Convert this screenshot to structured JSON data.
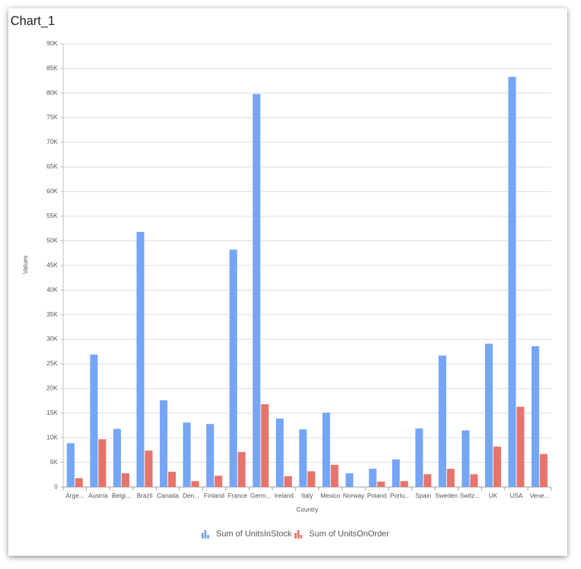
{
  "chart_data": {
    "type": "bar",
    "title": "Chart_1",
    "x_label": "Country",
    "y_label": "Values",
    "categories": [
      "Arge...",
      "Austria",
      "Belgi...",
      "Brazil",
      "Canada",
      "Den...",
      "Finland",
      "France",
      "Germ...",
      "Ireland",
      "Italy",
      "Mexico",
      "Norway",
      "Poland",
      "Portu...",
      "Spain",
      "Sweden",
      "Switz...",
      "UK",
      "USA",
      "Vene..."
    ],
    "series": [
      {
        "name": "Sum of UnitsInStock",
        "color": "#75a5f5",
        "values": [
          8900,
          26900,
          11800,
          51800,
          17600,
          13100,
          12800,
          48200,
          79800,
          13900,
          11700,
          15100,
          2800,
          3700,
          5600,
          11900,
          26700,
          11500,
          29100,
          83300,
          28600
        ]
      },
      {
        "name": "Sum of UnitsOnOrder",
        "color": "#e6746a",
        "values": [
          1800,
          9700,
          2800,
          7400,
          3100,
          1200,
          2300,
          7100,
          16800,
          2200,
          3200,
          4500,
          0,
          1100,
          1200,
          2600,
          3700,
          2600,
          8200,
          16300,
          6700
        ]
      }
    ],
    "ylim": [
      0,
      90000
    ],
    "yticks": [
      0,
      {
        "value": 5000,
        "label": "5K"
      },
      {
        "value": 10000,
        "label": "10K"
      },
      {
        "value": 15000,
        "label": "15K"
      },
      {
        "value": 20000,
        "label": "20K"
      },
      {
        "value": 25000,
        "label": "25K"
      },
      {
        "value": 30000,
        "label": "30K"
      },
      {
        "value": 35000,
        "label": "35K"
      },
      {
        "value": 40000,
        "label": "40K"
      },
      {
        "value": 45000,
        "label": "45K"
      },
      {
        "value": 50000,
        "label": "50K"
      },
      {
        "value": 55000,
        "label": "55K"
      },
      {
        "value": 60000,
        "label": "60K"
      },
      {
        "value": 65000,
        "label": "65K"
      },
      {
        "value": 70000,
        "label": "70K"
      },
      {
        "value": 75000,
        "label": "75K"
      },
      {
        "value": 80000,
        "label": "80K"
      },
      {
        "value": 85000,
        "label": "85K"
      },
      {
        "value": 90000,
        "label": "90K"
      }
    ],
    "grid": true,
    "legend": "bottom"
  }
}
